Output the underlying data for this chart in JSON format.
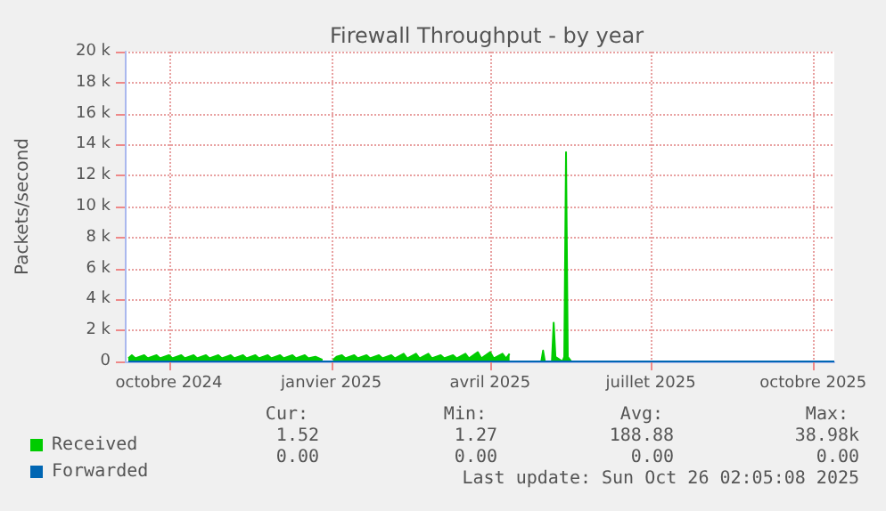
{
  "chart_data": {
    "type": "area",
    "title": "Firewall Throughput - by year",
    "ylabel": "Packets/second",
    "x": [
      "2024-09-08",
      "2024-09-10",
      "2024-09-12",
      "2024-09-17",
      "2024-09-19",
      "2024-09-24",
      "2024-09-26",
      "2024-10-01",
      "2024-10-03",
      "2024-10-08",
      "2024-10-10",
      "2024-10-15",
      "2024-10-17",
      "2024-10-22",
      "2024-10-24",
      "2024-10-29",
      "2024-10-31",
      "2024-11-05",
      "2024-11-07",
      "2024-11-12",
      "2024-11-14",
      "2024-11-19",
      "2024-11-21",
      "2024-11-26",
      "2024-11-28",
      "2024-12-03",
      "2024-12-05",
      "2024-12-10",
      "2024-12-12",
      "2024-12-17",
      "2024-12-19",
      "2024-12-23",
      "2024-12-27",
      "2024-12-28",
      "2025-01-02",
      "2025-01-04",
      "2025-01-07",
      "2025-01-09",
      "2025-01-14",
      "2025-01-16",
      "2025-01-21",
      "2025-01-23",
      "2025-01-28",
      "2025-01-30",
      "2025-02-04",
      "2025-02-06",
      "2025-02-11",
      "2025-02-13",
      "2025-02-18",
      "2025-02-20",
      "2025-02-25",
      "2025-02-27",
      "2025-03-04",
      "2025-03-06",
      "2025-03-11",
      "2025-03-13",
      "2025-03-18",
      "2025-03-20",
      "2025-03-25",
      "2025-03-27",
      "2025-04-01",
      "2025-04-03",
      "2025-04-08",
      "2025-04-10",
      "2025-04-12",
      "2025-04-13",
      "2025-04-30",
      "2025-05-01",
      "2025-05-02",
      "2025-05-06",
      "2025-05-07",
      "2025-05-08",
      "2025-05-12",
      "2025-05-13",
      "2025-05-14",
      "2025-05-15",
      "2025-05-17",
      "2025-10-13"
    ],
    "xlim": [
      "2024-09-06",
      "2025-10-13"
    ],
    "xticks": [
      {
        "value": "2024-10-01",
        "label": "octobre 2024"
      },
      {
        "value": "2025-01-01",
        "label": "janvier 2025"
      },
      {
        "value": "2025-04-01",
        "label": "avril 2025"
      },
      {
        "value": "2025-07-01",
        "label": "juillet 2025"
      },
      {
        "value": "2025-10-01",
        "label": "octobre 2025"
      }
    ],
    "ylim": [
      0,
      20000
    ],
    "yticks": [
      0,
      {
        "value": 2000,
        "label": "2 k"
      },
      {
        "value": 4000,
        "label": "4 k"
      },
      {
        "value": 6000,
        "label": "6 k"
      },
      {
        "value": 8000,
        "label": "8 k"
      },
      {
        "value": 10000,
        "label": "10 k"
      },
      {
        "value": 12000,
        "label": "12 k"
      },
      {
        "value": 14000,
        "label": "14 k"
      },
      {
        "value": 16000,
        "label": "16 k"
      },
      {
        "value": 18000,
        "label": "18 k"
      },
      {
        "value": 20000,
        "label": "20 k"
      }
    ],
    "series": [
      {
        "name": "Received",
        "color": "#00cc00",
        "values": [
          200,
          400,
          200,
          400,
          200,
          400,
          200,
          400,
          200,
          400,
          200,
          400,
          200,
          400,
          200,
          400,
          200,
          400,
          200,
          400,
          200,
          400,
          200,
          400,
          200,
          400,
          200,
          400,
          200,
          400,
          200,
          300,
          100,
          null,
          100,
          300,
          400,
          200,
          400,
          200,
          400,
          200,
          400,
          200,
          400,
          200,
          500,
          200,
          500,
          200,
          500,
          200,
          400,
          200,
          400,
          200,
          500,
          200,
          600,
          200,
          600,
          200,
          500,
          200,
          500,
          null,
          0,
          700,
          0,
          0,
          2500,
          300,
          0,
          300,
          13500,
          300,
          0,
          0
        ]
      },
      {
        "name": "Forwarded",
        "color": "#0066b3",
        "type": "line",
        "values": [
          0,
          0,
          0,
          0,
          0,
          0,
          0,
          0,
          0,
          0,
          0,
          0,
          0,
          0,
          0,
          0,
          0,
          0,
          0,
          0,
          0,
          0,
          0,
          0,
          0,
          0,
          0,
          0,
          0,
          0,
          0,
          0,
          0,
          0,
          0,
          0,
          0,
          0,
          0,
          0,
          0,
          0,
          0,
          0,
          0,
          0,
          0,
          0,
          0,
          0,
          0,
          0,
          0,
          0,
          0,
          0,
          0,
          0,
          0,
          0,
          0,
          0,
          0,
          0,
          0,
          0,
          0,
          0,
          0,
          0,
          0,
          0,
          0,
          0,
          0,
          0,
          0,
          0
        ]
      }
    ],
    "grid": true,
    "legend": "bottom left",
    "annotations": [
      "Cur:",
      "Min:",
      "Avg:",
      "Max:",
      "1.52",
      "1.27",
      "188.88",
      "38.98k",
      "0.00",
      "0.00",
      "0.00",
      "0.00",
      "Last update: Sun Oct 26 02:05:08 2025"
    ]
  }
}
